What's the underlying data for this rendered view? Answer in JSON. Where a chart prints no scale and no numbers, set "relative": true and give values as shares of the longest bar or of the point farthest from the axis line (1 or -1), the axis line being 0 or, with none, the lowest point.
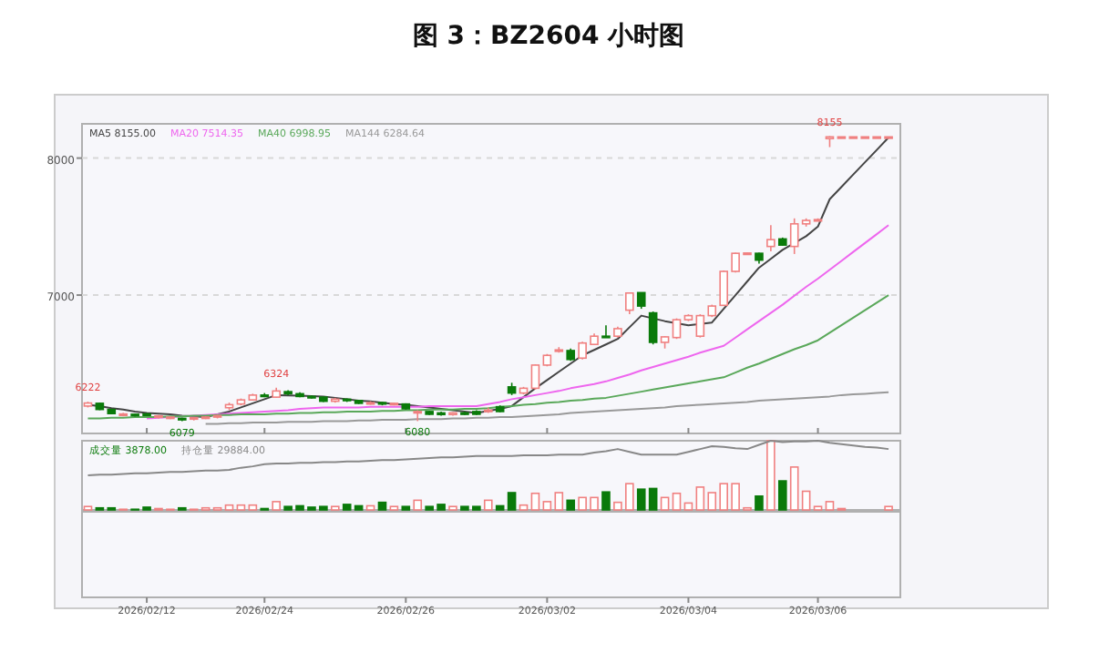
{
  "chart_data": [
    {
      "type": "candlestick",
      "title": "图 3：BZ2604 小时图",
      "categories": [
        null,
        null,
        null,
        null,
        null,
        "2026/02/12",
        null,
        null,
        null,
        null,
        null,
        null,
        null,
        null,
        null,
        "2026/02/24",
        null,
        null,
        null,
        null,
        null,
        null,
        null,
        null,
        null,
        null,
        null,
        "2026/02/26",
        null,
        null,
        null,
        null,
        null,
        null,
        null,
        null,
        null,
        null,
        null,
        "2026/03/02",
        null,
        null,
        null,
        null,
        null,
        null,
        null,
        null,
        null,
        null,
        null,
        "2026/03/04",
        null,
        null,
        null,
        null,
        null,
        null,
        null,
        null,
        null,
        null,
        "2026/03/06",
        null,
        null,
        null,
        null,
        null,
        null
      ],
      "ohlc": [
        [
          6190,
          6222,
          6180,
          6212
        ],
        [
          6210,
          6215,
          6160,
          6165
        ],
        [
          6165,
          6170,
          6130,
          6135
        ],
        [
          6125,
          6140,
          6115,
          6132
        ],
        [
          6130,
          6135,
          6115,
          6120
        ],
        [
          6132,
          6140,
          6120,
          6125
        ],
        [
          6110,
          6125,
          6100,
          6118
        ],
        [
          6105,
          6115,
          6095,
          6110
        ],
        [
          6100,
          6105,
          6079,
          6090
        ],
        [
          6095,
          6110,
          6085,
          6105
        ],
        [
          6105,
          6115,
          6095,
          6110
        ],
        [
          6112,
          6125,
          6100,
          6120
        ],
        [
          6178,
          6215,
          6160,
          6200
        ],
        [
          6205,
          6245,
          6195,
          6235
        ],
        [
          6235,
          6280,
          6230,
          6270
        ],
        [
          6270,
          6285,
          6255,
          6265
        ],
        [
          6255,
          6324,
          6250,
          6300
        ],
        [
          6295,
          6305,
          6270,
          6280
        ],
        [
          6280,
          6290,
          6255,
          6260
        ],
        [
          6260,
          6270,
          6245,
          6255
        ],
        [
          6255,
          6260,
          6220,
          6225
        ],
        [
          6225,
          6250,
          6215,
          6240
        ],
        [
          6240,
          6245,
          6220,
          6230
        ],
        [
          6230,
          6235,
          6205,
          6210
        ],
        [
          6210,
          6225,
          6200,
          6215
        ],
        [
          6215,
          6220,
          6195,
          6205
        ],
        [
          6205,
          6215,
          6195,
          6210
        ],
        [
          6205,
          6210,
          6165,
          6170
        ],
        [
          6140,
          6160,
          6080,
          6150
        ],
        [
          6150,
          6155,
          6125,
          6130
        ],
        [
          6140,
          6150,
          6120,
          6128
        ],
        [
          6128,
          6145,
          6120,
          6140
        ],
        [
          6140,
          6150,
          6125,
          6135
        ],
        [
          6150,
          6160,
          6125,
          6130
        ],
        [
          6150,
          6180,
          6140,
          6160
        ],
        [
          6185,
          6195,
          6145,
          6150
        ],
        [
          6330,
          6360,
          6270,
          6285
        ],
        [
          6285,
          6330,
          6275,
          6320
        ],
        [
          6320,
          6495,
          6310,
          6489
        ],
        [
          6489,
          6570,
          6480,
          6560
        ],
        [
          6595,
          6620,
          6580,
          6600
        ],
        [
          6595,
          6610,
          6520,
          6530
        ],
        [
          6540,
          6660,
          6530,
          6650
        ],
        [
          6640,
          6720,
          6635,
          6700
        ],
        [
          6700,
          6780,
          6690,
          6695
        ],
        [
          6700,
          6770,
          6690,
          6755
        ],
        [
          6890,
          7020,
          6860,
          7015
        ],
        [
          7018,
          7020,
          6900,
          6920
        ],
        [
          6870,
          6880,
          6640,
          6655
        ],
        [
          6655,
          6700,
          6610,
          6695
        ],
        [
          6690,
          6830,
          6680,
          6820
        ],
        [
          6820,
          6860,
          6810,
          6850
        ],
        [
          6700,
          6860,
          6690,
          6850
        ],
        [
          6850,
          6930,
          6840,
          6920
        ],
        [
          6925,
          7180,
          6920,
          7173
        ],
        [
          7173,
          7310,
          7165,
          7305
        ],
        [
          7305,
          7310,
          7300,
          7307
        ],
        [
          7305,
          7310,
          7230,
          7255
        ],
        [
          7355,
          7510,
          7320,
          7405
        ],
        [
          7410,
          7420,
          7360,
          7365
        ],
        [
          7355,
          7560,
          7300,
          7520
        ],
        [
          7520,
          7560,
          7500,
          7545
        ],
        [
          7550,
          7560,
          7545,
          7551
        ],
        [
          8142,
          8160,
          8080,
          8155
        ],
        [
          8155,
          8155,
          8155,
          8155
        ],
        [
          8155,
          8155,
          8155,
          8155
        ],
        [
          8155,
          8155,
          8155,
          8155
        ],
        [
          8155,
          8155,
          8155,
          8155
        ],
        [
          8155,
          8155,
          8155,
          8155
        ]
      ],
      "colors": [
        "#f08080",
        "#0a7a0a",
        "#0a7a0a",
        "#f08080",
        "#0a7a0a",
        "#0a7a0a",
        "#f08080",
        "#f08080",
        "#0a7a0a",
        "#f08080",
        "#f08080",
        "#f08080",
        "#f08080",
        "#f08080",
        "#f08080",
        "#0a7a0a",
        "#f08080",
        "#0a7a0a",
        "#0a7a0a",
        "#0a7a0a",
        "#0a7a0a",
        "#f08080",
        "#0a7a0a",
        "#0a7a0a",
        "#f08080",
        "#0a7a0a",
        "#f08080",
        "#0a7a0a",
        "#f08080",
        "#0a7a0a",
        "#0a7a0a",
        "#f08080",
        "#0a7a0a",
        "#0a7a0a",
        "#f08080",
        "#0a7a0a",
        "#0a7a0a",
        "#f08080",
        "#f08080",
        "#f08080",
        "#f08080",
        "#0a7a0a",
        "#f08080",
        "#f08080",
        "#0a7a0a",
        "#f08080",
        "#f08080",
        "#0a7a0a",
        "#0a7a0a",
        "#f08080",
        "#f08080",
        "#f08080",
        "#f08080",
        "#f08080",
        "#f08080",
        "#f08080",
        "#f08080",
        "#0a7a0a",
        "#f08080",
        "#0a7a0a",
        "#f08080",
        "#f08080",
        "#f08080",
        "#f08080",
        "#f08080",
        "#f08080",
        "#f08080",
        "#f08080",
        "#f08080"
      ],
      "series": [
        {
          "type": "line",
          "name": "MA5 8155.00",
          "color": "#444444",
          "values": [
            6200,
            6190,
            6175,
            6165,
            6150,
            6140,
            6135,
            6130,
            6120,
            6115,
            6110,
            6130,
            6150,
            6180,
            6210,
            6240,
            6270,
            6268,
            6265,
            6262,
            6260,
            6250,
            6240,
            6230,
            6225,
            6215,
            6205,
            6200,
            6190,
            6180,
            6170,
            6160,
            6150,
            6140,
            6155,
            6170,
            6190,
            6255,
            6320,
            6380,
            6440,
            6500,
            6560,
            6600,
            6640,
            6680,
            6765,
            6850,
            6830,
            6810,
            6795,
            6780,
            6790,
            6800,
            6900,
            7000,
            7100,
            7200,
            7265,
            7330,
            7380,
            7430,
            7500,
            7700,
            7790,
            7880,
            7970,
            8060,
            8150
          ]
        },
        {
          "type": "line",
          "name": "MA20 7514.35",
          "color": "#ee66ee",
          "values": [
            null,
            null,
            null,
            null,
            null,
            6100,
            6105,
            6110,
            6115,
            6120,
            6125,
            6130,
            6135,
            6140,
            6145,
            6150,
            6155,
            6160,
            6170,
            6175,
            6180,
            6180,
            6180,
            6180,
            6185,
            6185,
            6185,
            6185,
            6185,
            6190,
            6190,
            6190,
            6190,
            6190,
            6205,
            6220,
            6240,
            6255,
            6270,
            6285,
            6300,
            6320,
            6335,
            6350,
            6370,
            6395,
            6420,
            6450,
            6475,
            6500,
            6525,
            6550,
            6580,
            6605,
            6630,
            6690,
            6750,
            6810,
            6870,
            6930,
            6995,
            7060,
            7120,
            7185,
            7250,
            7315,
            7380,
            7445,
            7510
          ]
        },
        {
          "type": "line",
          "name": "MA40 6998.95",
          "color": "#5aa85a",
          "values": [
            6100,
            6100,
            6105,
            6105,
            6110,
            6110,
            6110,
            6115,
            6115,
            6120,
            6120,
            6125,
            6125,
            6130,
            6130,
            6130,
            6135,
            6135,
            6140,
            6140,
            6145,
            6145,
            6150,
            6150,
            6150,
            6155,
            6155,
            6160,
            6160,
            6165,
            6165,
            6165,
            6170,
            6170,
            6175,
            6185,
            6190,
            6200,
            6205,
            6215,
            6220,
            6230,
            6235,
            6245,
            6250,
            6265,
            6280,
            6295,
            6310,
            6325,
            6340,
            6355,
            6370,
            6385,
            6400,
            6435,
            6470,
            6500,
            6535,
            6570,
            6605,
            6635,
            6670,
            6725,
            6780,
            6835,
            6890,
            6945,
            7000
          ]
        },
        {
          "type": "line",
          "name": "MA144 6284.64",
          "color": "#999999",
          "values": [
            null,
            null,
            null,
            null,
            null,
            null,
            null,
            null,
            null,
            null,
            6060,
            6060,
            6065,
            6065,
            6070,
            6070,
            6070,
            6075,
            6075,
            6075,
            6080,
            6080,
            6080,
            6085,
            6085,
            6090,
            6090,
            6090,
            6095,
            6095,
            6095,
            6100,
            6100,
            6105,
            6105,
            6110,
            6110,
            6115,
            6120,
            6125,
            6130,
            6140,
            6145,
            6150,
            6155,
            6160,
            6165,
            6170,
            6175,
            6180,
            6190,
            6195,
            6200,
            6205,
            6210,
            6215,
            6220,
            6230,
            6235,
            6240,
            6245,
            6250,
            6255,
            6260,
            6270,
            6275,
            6280,
            6285,
            6290
          ]
        }
      ],
      "ylim": [
        5990,
        8250
      ],
      "yticks": [
        7000,
        8000
      ],
      "tick_labels": "y",
      "grid": "y",
      "annotations": [
        {
          "text": "6222",
          "y": 6222
        },
        {
          "text": "6324",
          "y": 6324
        },
        {
          "text": "6079",
          "y": 6079
        },
        {
          "text": "6080",
          "y": 6080
        },
        {
          "text": "8155",
          "y": 8160
        }
      ]
    },
    {
      "type": "bar",
      "relative": true,
      "categories": [
        null,
        null,
        null,
        null,
        null,
        "2026/02/12",
        null,
        null,
        null,
        null,
        null,
        null,
        null,
        null,
        null,
        "2026/02/24",
        null,
        null,
        null,
        null,
        null,
        null,
        null,
        null,
        null,
        null,
        null,
        "2026/02/26",
        null,
        null,
        null,
        null,
        null,
        null,
        null,
        null,
        null,
        null,
        null,
        "2026/03/02",
        null,
        null,
        null,
        null,
        null,
        null,
        null,
        null,
        null,
        null,
        null,
        "2026/03/04",
        null,
        null,
        null,
        null,
        null,
        null,
        null,
        null,
        null,
        null,
        "2026/03/06",
        null,
        null,
        null,
        null,
        null,
        null
      ],
      "series": [
        {
          "type": "bar",
          "name": "成交量 3878.00",
          "color": "#0a7a0a",
          "values": [
            0.05,
            0.03,
            0.03,
            0.01,
            0.01,
            0.04,
            0.02,
            0.01,
            0.03,
            0.01,
            0.03,
            0.03,
            0.07,
            0.07,
            0.07,
            0.02,
            0.12,
            0.05,
            0.06,
            0.04,
            0.05,
            0.05,
            0.08,
            0.06,
            0.06,
            0.11,
            0.05,
            0.05,
            0.14,
            0.05,
            0.08,
            0.05,
            0.05,
            0.05,
            0.14,
            0.06,
            0.25,
            0.07,
            0.24,
            0.12,
            0.25,
            0.14,
            0.18,
            0.18,
            0.26,
            0.11,
            0.38,
            0.3,
            0.31,
            0.18,
            0.24,
            0.1,
            0.33,
            0.25,
            0.38,
            0.38,
            0.03,
            0.2,
            1,
            0.42,
            0.62,
            0.27,
            0.05,
            0.12,
            0.02,
            0,
            0,
            0,
            0.05
          ],
          "colors": [
            "#f08080",
            "#0a7a0a",
            "#0a7a0a",
            "#f08080",
            "#0a7a0a",
            "#0a7a0a",
            "#f08080",
            "#f08080",
            "#0a7a0a",
            "#f08080",
            "#f08080",
            "#f08080",
            "#f08080",
            "#f08080",
            "#f08080",
            "#0a7a0a",
            "#f08080",
            "#0a7a0a",
            "#0a7a0a",
            "#0a7a0a",
            "#0a7a0a",
            "#f08080",
            "#0a7a0a",
            "#0a7a0a",
            "#f08080",
            "#0a7a0a",
            "#f08080",
            "#0a7a0a",
            "#f08080",
            "#0a7a0a",
            "#0a7a0a",
            "#f08080",
            "#0a7a0a",
            "#0a7a0a",
            "#f08080",
            "#0a7a0a",
            "#0a7a0a",
            "#f08080",
            "#f08080",
            "#f08080",
            "#f08080",
            "#0a7a0a",
            "#f08080",
            "#f08080",
            "#0a7a0a",
            "#f08080",
            "#f08080",
            "#0a7a0a",
            "#0a7a0a",
            "#f08080",
            "#f08080",
            "#f08080",
            "#f08080",
            "#f08080",
            "#f08080",
            "#f08080",
            "#f08080",
            "#0a7a0a",
            "#f08080",
            "#0a7a0a",
            "#f08080",
            "#f08080",
            "#f08080",
            "#f08080",
            "#f08080",
            "#f08080",
            "#f08080",
            "#f08080",
            "#f08080"
          ]
        },
        {
          "type": "line",
          "name": "持仓量 29884.00",
          "color": "#888888",
          "values": [
            0.5,
            0.51,
            0.51,
            0.52,
            0.53,
            0.53,
            0.54,
            0.55,
            0.55,
            0.56,
            0.57,
            0.57,
            0.58,
            0.61,
            0.63,
            0.66,
            0.67,
            0.67,
            0.68,
            0.68,
            0.69,
            0.69,
            0.7,
            0.7,
            0.71,
            0.72,
            0.72,
            0.73,
            0.74,
            0.75,
            0.76,
            0.76,
            0.77,
            0.78,
            0.78,
            0.78,
            0.78,
            0.79,
            0.79,
            0.79,
            0.8,
            0.8,
            0.8,
            0.83,
            0.85,
            0.88,
            0.84,
            0.8,
            0.8,
            0.8,
            0.8,
            0.84,
            0.88,
            0.92,
            0.91,
            0.89,
            0.88,
            0.94,
            1,
            0.98,
            0.99,
            0.99,
            1,
            0.97,
            0.95,
            0.93,
            0.91,
            0.9,
            0.88
          ]
        }
      ],
      "tick_labels": "x"
    }
  ]
}
